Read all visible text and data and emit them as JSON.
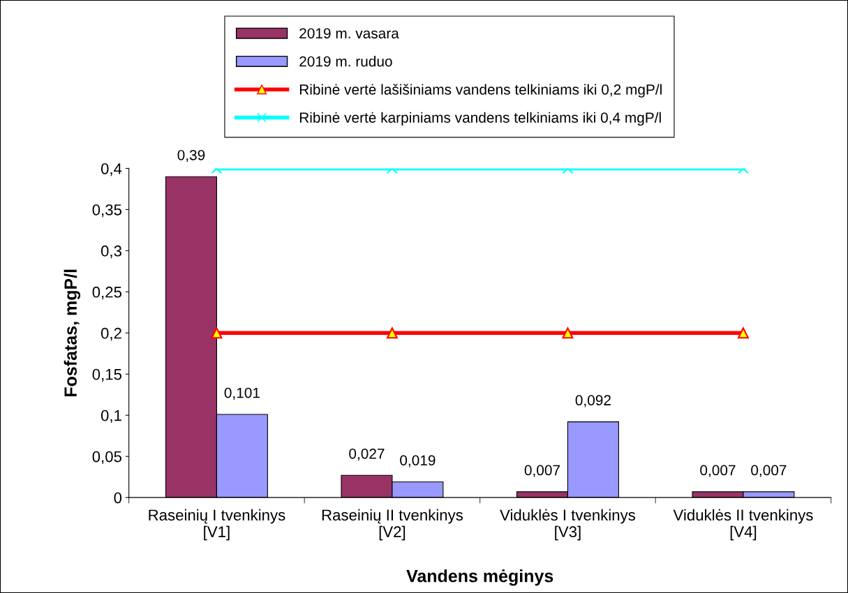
{
  "chart_data": {
    "type": "bar",
    "xlabel": "Vandens mėginys",
    "ylabel": "Fosfatas, mgP/l",
    "categories": [
      "Raseinių I tvenkinys\n[V1]",
      "Raseinių II tvenkinys\n[V2]",
      "Viduklės I tvenkinys\n[V3]",
      "Viduklės II tvenkinys\n[V4]"
    ],
    "series": [
      {
        "name": "2019 m. vasara",
        "color": "#993366",
        "values": [
          0.39,
          0.027,
          0.007,
          0.007
        ],
        "value_labels": [
          "0,39",
          "0,027",
          "0,007",
          "0,007"
        ]
      },
      {
        "name": "2019 m. ruduo",
        "color": "#9999ff",
        "values": [
          0.101,
          0.019,
          0.092,
          0.007
        ],
        "value_labels": [
          "0,101",
          "0,019",
          "0,092",
          "0,007"
        ]
      },
      {
        "name": "Ribinė vertė lašišiniams vandens telkiniams iki 0,2 mgP/l",
        "type": "line",
        "color": "#ff0000",
        "marker": "triangle",
        "values": [
          0.2,
          0.2,
          0.2,
          0.2
        ]
      },
      {
        "name": "Ribinė vertė karpiniams vandens telkiniams iki 0,4 mgP/l",
        "type": "line",
        "color": "#00ffff",
        "marker": "cross",
        "values": [
          0.4,
          0.4,
          0.4,
          0.4
        ]
      }
    ],
    "ylim": [
      0,
      0.4
    ],
    "yticks": [
      {
        "value": 0,
        "label": "0"
      },
      {
        "value": 0.05,
        "label": "0,05"
      },
      {
        "value": 0.1,
        "label": "0,1"
      },
      {
        "value": 0.15,
        "label": "0,15"
      },
      {
        "value": 0.2,
        "label": "0,2"
      },
      {
        "value": 0.25,
        "label": "0,25"
      },
      {
        "value": 0.3,
        "label": "0,3"
      },
      {
        "value": 0.35,
        "label": "0,35"
      },
      {
        "value": 0.4,
        "label": "0,4"
      }
    ],
    "grid": false,
    "legend": "top"
  }
}
